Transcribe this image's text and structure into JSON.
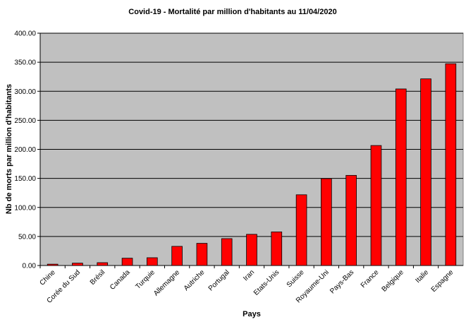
{
  "chart_data": {
    "type": "bar",
    "title": "Covid-19 - Mortalité par million d'habitants au 11/04/2020",
    "xlabel": "Pays",
    "ylabel": "Nb de morts par million d'habitants",
    "categories": [
      "Chine",
      "Corée du Sud",
      "Brésil",
      "Canada",
      "Turquie",
      "Allemagne",
      "Autriche",
      "Portugal",
      "Iran",
      "Etats-Unis",
      "Suisse",
      "Royaume-Uni",
      "Pays-Bas",
      "France",
      "Belgique",
      "Italie",
      "Espagne"
    ],
    "values": [
      2.3,
      4.1,
      4.9,
      12.6,
      13.4,
      33.0,
      38.2,
      46.3,
      53.7,
      57.9,
      121.8,
      149.6,
      155.2,
      206.6,
      304.0,
      321.4,
      347.4
    ],
    "yticks": [
      "0.00",
      "50.00",
      "100.00",
      "150.00",
      "200.00",
      "250.00",
      "300.00",
      "350.00",
      "400.00"
    ],
    "ylim": [
      0,
      400
    ],
    "grid": true,
    "colors": {
      "bar": "#ff0000",
      "plot_background": "#c0c0c0",
      "grid": "#000000"
    }
  }
}
